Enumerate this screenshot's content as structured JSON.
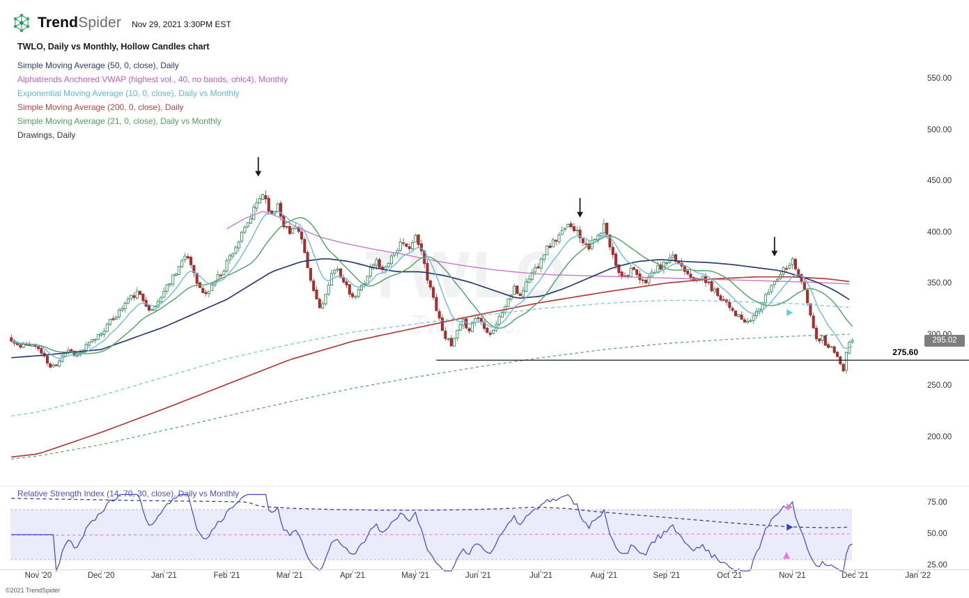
{
  "header": {
    "brand_bold": "Trend",
    "brand_light": "Spider",
    "timestamp": "Nov 29, 2021 3:30PM EST",
    "chart_title": "TWLO, Daily vs Monthly, Hollow Candles chart"
  },
  "legend": [
    {
      "label": "Simple Moving Average (50, 0, close), Daily",
      "color": "#2a3a6e"
    },
    {
      "label": "Alphatrends Anchored VWAP (highest vol., 40, no bands, ohlc4), Monthly",
      "color": "#bf5fbf"
    },
    {
      "label": "Exponential Moving Average (10, 0, close), Daily vs Monthly",
      "color": "#5fb8d9"
    },
    {
      "label": "Simple Moving Average (200, 0, close), Daily",
      "color": "#bf4040"
    },
    {
      "label": "Simple Moving Average (21, 0, close), Daily vs Monthly",
      "color": "#4f9e5f"
    },
    {
      "label": "Drawings, Daily",
      "color": "#333333"
    }
  ],
  "watermark": {
    "line1": "TWLO",
    "line2": "Twilio Inc."
  },
  "price_axis": {
    "labels": [
      550,
      500,
      450,
      400,
      350,
      300,
      250,
      200
    ],
    "current_price": "295.02",
    "level_label": "275.60"
  },
  "rsi": {
    "legend": "Relative Strength Index (14, 70, 30, close), Daily vs Monthly",
    "labels": [
      75,
      50,
      25
    ]
  },
  "x_axis": [
    "Nov '20",
    "Dec '20",
    "Jan '21",
    "Feb '21",
    "Mar '21",
    "Apr '21",
    "May '21",
    "Jun '21",
    "Jul '21",
    "Aug '21",
    "Sep '21",
    "Oct '21",
    "Nov '21",
    "Dec '21",
    "Jan '22"
  ],
  "footer": "©2021 TrendSpider",
  "chart_data": {
    "type": "candlestick",
    "symbol": "TWLO",
    "timeframe": "Daily vs Monthly",
    "noise_seed": 11,
    "day_range": [
      -9,
      272
    ],
    "last_close": 295.02,
    "ylim": [
      190,
      560
    ],
    "colors": {
      "candle_up": "#2e8b57",
      "candle_down": "#a33030",
      "rsi_line": "#3b46c8",
      "rsi_band": "rgba(120,125,230,0.15)",
      "drawing": "#1a1a1a"
    },
    "price_anchors": [
      [
        -9,
        294
      ],
      [
        -6,
        288
      ],
      [
        -3,
        292
      ],
      [
        0,
        287
      ],
      [
        2,
        278
      ],
      [
        4,
        268
      ],
      [
        6,
        272
      ],
      [
        8,
        281
      ],
      [
        10,
        286
      ],
      [
        13,
        280
      ],
      [
        16,
        289
      ],
      [
        19,
        297
      ],
      [
        21,
        303
      ],
      [
        24,
        313
      ],
      [
        27,
        323
      ],
      [
        30,
        335
      ],
      [
        33,
        341
      ],
      [
        36,
        331
      ],
      [
        38,
        323
      ],
      [
        40,
        333
      ],
      [
        42,
        343
      ],
      [
        44,
        353
      ],
      [
        46,
        363
      ],
      [
        48,
        372
      ],
      [
        50,
        376
      ],
      [
        52,
        362
      ],
      [
        54,
        345
      ],
      [
        56,
        339
      ],
      [
        58,
        349
      ],
      [
        60,
        357
      ],
      [
        62,
        365
      ],
      [
        63,
        372
      ],
      [
        65,
        382
      ],
      [
        67,
        392
      ],
      [
        69,
        403
      ],
      [
        71,
        415
      ],
      [
        73,
        429
      ],
      [
        75,
        439
      ],
      [
        76,
        433
      ],
      [
        78,
        416
      ],
      [
        80,
        429
      ],
      [
        82,
        409
      ],
      [
        84,
        399
      ],
      [
        86,
        409
      ],
      [
        88,
        393
      ],
      [
        90,
        363
      ],
      [
        92,
        343
      ],
      [
        94,
        327
      ],
      [
        96,
        339
      ],
      [
        98,
        357
      ],
      [
        100,
        367
      ],
      [
        102,
        351
      ],
      [
        104,
        341
      ],
      [
        105,
        335
      ],
      [
        107,
        343
      ],
      [
        109,
        353
      ],
      [
        111,
        365
      ],
      [
        113,
        373
      ],
      [
        115,
        363
      ],
      [
        117,
        373
      ],
      [
        119,
        381
      ],
      [
        121,
        389
      ],
      [
        123,
        385
      ],
      [
        125,
        391
      ],
      [
        126,
        395
      ],
      [
        128,
        381
      ],
      [
        130,
        357
      ],
      [
        132,
        337
      ],
      [
        134,
        315
      ],
      [
        136,
        299
      ],
      [
        138,
        289
      ],
      [
        140,
        303
      ],
      [
        142,
        313
      ],
      [
        144,
        306
      ],
      [
        146,
        317
      ],
      [
        147,
        317
      ],
      [
        149,
        309
      ],
      [
        151,
        301
      ],
      [
        153,
        311
      ],
      [
        155,
        323
      ],
      [
        157,
        335
      ],
      [
        159,
        345
      ],
      [
        161,
        339
      ],
      [
        163,
        351
      ],
      [
        165,
        361
      ],
      [
        167,
        369
      ],
      [
        168,
        377
      ],
      [
        170,
        385
      ],
      [
        172,
        391
      ],
      [
        174,
        397
      ],
      [
        176,
        403
      ],
      [
        178,
        409
      ],
      [
        180,
        401
      ],
      [
        182,
        393
      ],
      [
        184,
        387
      ],
      [
        186,
        393
      ],
      [
        188,
        399
      ],
      [
        189,
        407
      ],
      [
        190,
        397
      ],
      [
        192,
        377
      ],
      [
        194,
        363
      ],
      [
        196,
        357
      ],
      [
        198,
        365
      ],
      [
        200,
        357
      ],
      [
        202,
        351
      ],
      [
        204,
        357
      ],
      [
        206,
        363
      ],
      [
        208,
        367
      ],
      [
        210,
        371
      ],
      [
        212,
        375
      ],
      [
        214,
        371
      ],
      [
        216,
        365
      ],
      [
        218,
        359
      ],
      [
        220,
        353
      ],
      [
        222,
        357
      ],
      [
        224,
        349
      ],
      [
        226,
        343
      ],
      [
        228,
        337
      ],
      [
        230,
        333
      ],
      [
        231,
        329
      ],
      [
        233,
        321
      ],
      [
        235,
        315
      ],
      [
        237,
        311
      ],
      [
        239,
        319
      ],
      [
        241,
        327
      ],
      [
        243,
        337
      ],
      [
        245,
        349
      ],
      [
        247,
        357
      ],
      [
        249,
        365
      ],
      [
        251,
        371
      ],
      [
        252,
        373
      ],
      [
        253,
        367
      ],
      [
        254,
        361
      ],
      [
        255,
        353
      ],
      [
        256,
        343
      ],
      [
        257,
        331
      ],
      [
        258,
        319
      ],
      [
        259,
        306
      ],
      [
        260,
        297
      ],
      [
        261,
        293
      ],
      [
        262,
        297
      ],
      [
        263,
        291
      ],
      [
        264,
        287
      ],
      [
        265,
        291
      ],
      [
        266,
        285
      ],
      [
        267,
        279
      ],
      [
        268,
        271
      ],
      [
        269,
        267
      ],
      [
        270,
        281
      ],
      [
        271,
        291
      ],
      [
        272,
        295.02
      ]
    ],
    "overlays": [
      {
        "name": "sma21-monthly",
        "color": "#4f9e5f",
        "width": 1.2,
        "dash": "4,4",
        "points": [
          [
            -9,
            179
          ],
          [
            0,
            182
          ],
          [
            21,
            193
          ],
          [
            42,
            207
          ],
          [
            63,
            221
          ],
          [
            84,
            235
          ],
          [
            105,
            248
          ],
          [
            126,
            259
          ],
          [
            147,
            269
          ],
          [
            168,
            278
          ],
          [
            189,
            286
          ],
          [
            210,
            292
          ],
          [
            231,
            296
          ],
          [
            252,
            299
          ],
          [
            272,
            301
          ]
        ]
      },
      {
        "name": "ema10-monthly",
        "color": "#7ac3e6",
        "width": 1.3,
        "dash": "5,4",
        "points": [
          [
            -9,
            221
          ],
          [
            0,
            225
          ],
          [
            21,
            241
          ],
          [
            42,
            259
          ],
          [
            63,
            277
          ],
          [
            84,
            291
          ],
          [
            105,
            303
          ],
          [
            126,
            311
          ],
          [
            147,
            319
          ],
          [
            168,
            326
          ],
          [
            189,
            331
          ],
          [
            200,
            333
          ],
          [
            210,
            334
          ],
          [
            220,
            334
          ],
          [
            231,
            333
          ],
          [
            242,
            332
          ],
          [
            252,
            331
          ],
          [
            262,
            329
          ],
          [
            272,
            327
          ]
        ]
      },
      {
        "name": "sma200-daily",
        "color": "#b23b3b",
        "width": 1.7,
        "points": [
          [
            -9,
            181
          ],
          [
            0,
            184
          ],
          [
            21,
            205
          ],
          [
            42,
            228
          ],
          [
            63,
            252
          ],
          [
            84,
            276
          ],
          [
            105,
            294
          ],
          [
            126,
            307
          ],
          [
            147,
            320
          ],
          [
            168,
            332
          ],
          [
            189,
            342
          ],
          [
            210,
            351
          ],
          [
            225,
            355
          ],
          [
            240,
            357
          ],
          [
            252,
            357
          ],
          [
            264,
            355
          ],
          [
            272,
            352
          ]
        ]
      },
      {
        "name": "vwap-monthly",
        "color": "#c878c8",
        "width": 1.4,
        "points": [
          [
            63,
            404
          ],
          [
            69,
            414
          ],
          [
            75,
            421
          ],
          [
            80,
            416
          ],
          [
            86,
            406
          ],
          [
            94,
            396
          ],
          [
            102,
            390
          ],
          [
            112,
            384
          ],
          [
            122,
            379
          ],
          [
            132,
            373
          ],
          [
            142,
            368
          ],
          [
            152,
            364
          ],
          [
            162,
            361
          ],
          [
            172,
            359
          ],
          [
            184,
            358
          ],
          [
            196,
            357
          ],
          [
            208,
            356
          ],
          [
            220,
            355
          ],
          [
            232,
            354
          ],
          [
            244,
            353
          ],
          [
            256,
            352
          ],
          [
            272,
            350
          ]
        ]
      },
      {
        "name": "sma50-daily",
        "color": "#2a3a6e",
        "width": 1.7,
        "points": [
          [
            -9,
            278
          ],
          [
            0,
            280
          ],
          [
            21,
            286
          ],
          [
            42,
            308
          ],
          [
            63,
            335
          ],
          [
            78,
            362
          ],
          [
            88,
            372
          ],
          [
            96,
            375
          ],
          [
            104,
            372
          ],
          [
            112,
            366
          ],
          [
            120,
            362
          ],
          [
            128,
            362
          ],
          [
            136,
            358
          ],
          [
            144,
            352
          ],
          [
            152,
            344
          ],
          [
            160,
            336
          ],
          [
            168,
            338
          ],
          [
            176,
            346
          ],
          [
            184,
            356
          ],
          [
            192,
            366
          ],
          [
            200,
            372
          ],
          [
            208,
            374
          ],
          [
            216,
            372
          ],
          [
            224,
            371
          ],
          [
            232,
            369
          ],
          [
            240,
            366
          ],
          [
            248,
            363
          ],
          [
            254,
            358
          ],
          [
            260,
            352
          ],
          [
            266,
            344
          ],
          [
            272,
            333
          ]
        ]
      },
      {
        "name": "sma21-daily",
        "color": "#4f9e5f",
        "width": 1.4,
        "computed": "sma21"
      },
      {
        "name": "ema10-daily",
        "color": "#6db8dc",
        "width": 1.4,
        "computed": "ema10"
      }
    ],
    "level": {
      "value": 275.6,
      "start_day": 133
    },
    "arrows": [
      {
        "day": 73.5,
        "price": 455
      },
      {
        "day": 181,
        "price": 415
      },
      {
        "day": 246,
        "price": 377
      }
    ],
    "rsi_overlays": [
      {
        "name": "rsi-monthly",
        "color": "#3a3f8e",
        "width": 1.3,
        "dash": "5,4",
        "points": [
          [
            -9,
            79
          ],
          [
            15,
            78
          ],
          [
            40,
            77
          ],
          [
            60,
            76.5
          ],
          [
            70,
            76
          ],
          [
            74,
            72.5
          ],
          [
            85,
            71
          ],
          [
            100,
            70
          ],
          [
            115,
            69.5
          ],
          [
            130,
            69.5
          ],
          [
            145,
            70
          ],
          [
            158,
            71
          ],
          [
            166,
            72
          ],
          [
            176,
            71
          ],
          [
            186,
            68.5
          ],
          [
            196,
            66.5
          ],
          [
            206,
            64.5
          ],
          [
            216,
            62.5
          ],
          [
            226,
            60.5
          ],
          [
            236,
            58.5
          ],
          [
            246,
            57
          ],
          [
            254,
            56
          ],
          [
            264,
            55.5
          ],
          [
            272,
            56
          ]
        ]
      },
      {
        "name": "rsi-midline-monthly",
        "color": "#d883d8",
        "width": 1.2,
        "dash": "4,4",
        "points": [
          [
            -9,
            49.6
          ],
          [
            90,
            50
          ],
          [
            180,
            50.3
          ],
          [
            272,
            50.6
          ]
        ]
      }
    ],
    "rsi_band": {
      "upper": 70,
      "lower": 30
    },
    "markers": [
      {
        "pane": "main",
        "day": 251,
        "value": 322,
        "color": "#6ec6ea",
        "shape": "right"
      },
      {
        "pane": "rsi",
        "day": 251,
        "value": 72,
        "color": "#e87bd8",
        "shape": "right"
      },
      {
        "pane": "rsi",
        "day": 251,
        "value": 56,
        "color": "#2d3fd0",
        "shape": "right"
      },
      {
        "pane": "rsi",
        "day": 250,
        "value": 33,
        "color": "#e87bd8",
        "shape": "up"
      }
    ]
  }
}
